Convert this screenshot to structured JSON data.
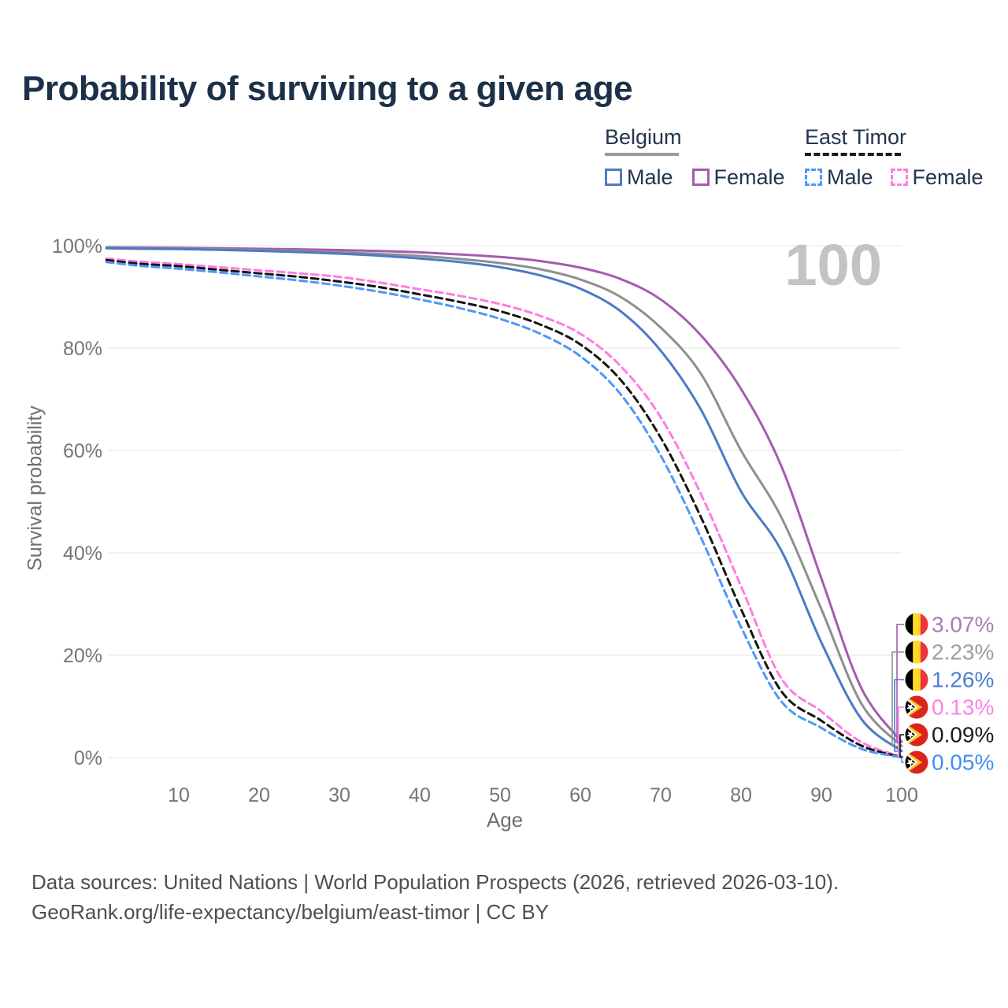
{
  "title": "Probability of surviving to a given age",
  "watermark": "100",
  "legend": {
    "groups": [
      {
        "label": "Belgium",
        "line_style": "solid",
        "underline_color": "#9b9b9b",
        "items": [
          {
            "label": "Male",
            "color": "#4d7cc3",
            "dashed": false
          },
          {
            "label": "Female",
            "color": "#a55cb0",
            "dashed": false
          }
        ]
      },
      {
        "label": "East Timor",
        "line_style": "dashed",
        "underline_color": "#1a1a1a",
        "items": [
          {
            "label": "Male",
            "color": "#4f97fa",
            "dashed": true
          },
          {
            "label": "Female",
            "color": "#ff7ce2",
            "dashed": true
          }
        ]
      }
    ]
  },
  "chart_data": {
    "type": "line",
    "title": "Probability of surviving to a given age",
    "xlabel": "Age",
    "ylabel": "Survival probability",
    "xlim": [
      0,
      103
    ],
    "ylim": [
      0,
      100
    ],
    "grid": "horizontal",
    "x_ticks": [
      10,
      20,
      30,
      40,
      50,
      60,
      70,
      80,
      90,
      100
    ],
    "y_ticks": [
      "0%",
      "20%",
      "40%",
      "60%",
      "80%",
      "100%"
    ],
    "y_gridlines_pct": [
      0,
      20,
      40,
      60,
      80,
      100
    ],
    "legend_position": "top-right",
    "ages": [
      1,
      5,
      10,
      15,
      20,
      25,
      30,
      35,
      40,
      45,
      50,
      55,
      60,
      65,
      70,
      75,
      80,
      85,
      90,
      95,
      100
    ],
    "series": [
      {
        "name": "Belgium — Female",
        "country": "Belgium",
        "sex": "Female",
        "color": "#a55cb0",
        "label_color": "#a87cb5",
        "dashed": false,
        "flag_icon": "belgium-flag-icon",
        "end_label": "3.07%",
        "end_value_pct": 3.07,
        "values": [
          99.7,
          99.65,
          99.6,
          99.5,
          99.4,
          99.3,
          99.15,
          98.95,
          98.7,
          98.3,
          97.8,
          97.0,
          95.7,
          93.5,
          89.5,
          82.5,
          72.0,
          57.0,
          35.0,
          13.5,
          3.07
        ]
      },
      {
        "name": "Belgium — Both sexes",
        "country": "Belgium",
        "sex": "Both",
        "color": "#8f8f8f",
        "label_color": "#9e9e9e",
        "dashed": false,
        "flag_icon": "belgium-flag-icon",
        "end_label": "2.23%",
        "end_value_pct": 2.23,
        "values": [
          99.6,
          99.5,
          99.45,
          99.3,
          99.15,
          98.95,
          98.7,
          98.4,
          98.0,
          97.4,
          96.6,
          95.4,
          93.4,
          90.0,
          84.0,
          75.0,
          60.0,
          47.0,
          29.0,
          10.5,
          2.23
        ]
      },
      {
        "name": "Belgium — Male",
        "country": "Belgium",
        "sex": "Male",
        "color": "#4a7bc4",
        "label_color": "#4d7ed0",
        "dashed": false,
        "flag_icon": "belgium-flag-icon",
        "end_label": "1.26%",
        "end_value_pct": 1.26,
        "values": [
          99.5,
          99.4,
          99.35,
          99.2,
          99.0,
          98.75,
          98.45,
          98.05,
          97.5,
          96.8,
          95.8,
          94.2,
          91.6,
          87.2,
          79.5,
          68.0,
          52.0,
          40.5,
          22.5,
          7.5,
          1.26
        ]
      },
      {
        "name": "East Timor — Female",
        "country": "East Timor",
        "sex": "Female",
        "color": "#ff7ce2",
        "label_color": "#ff80e4",
        "dashed": true,
        "flag_icon": "east-timor-flag-icon",
        "end_label": "0.13%",
        "end_value_pct": 0.13,
        "values": [
          97.5,
          96.9,
          96.4,
          95.8,
          95.2,
          94.6,
          93.9,
          92.8,
          91.5,
          90.2,
          88.6,
          86.3,
          82.8,
          76.5,
          66.5,
          51.5,
          33.5,
          15.5,
          9.0,
          3.0,
          0.13
        ]
      },
      {
        "name": "East Timor — Both sexes",
        "country": "East Timor",
        "sex": "Both",
        "color": "#141414",
        "label_color": "#1a1a1a",
        "dashed": true,
        "flag_icon": "east-timor-flag-icon",
        "end_label": "0.09%",
        "end_value_pct": 0.09,
        "values": [
          97.2,
          96.5,
          96.0,
          95.3,
          94.6,
          93.9,
          93.0,
          91.9,
          90.5,
          89.0,
          87.2,
          84.6,
          80.7,
          73.8,
          62.5,
          47.0,
          29.0,
          13.0,
          7.2,
          2.3,
          0.09
        ]
      },
      {
        "name": "East Timor — Male",
        "country": "East Timor",
        "sex": "Male",
        "color": "#4f97fa",
        "label_color": "#3f8ef7",
        "dashed": true,
        "flag_icon": "east-timor-flag-icon",
        "end_label": "0.05%",
        "end_value_pct": 0.05,
        "values": [
          96.8,
          96.1,
          95.5,
          94.8,
          94.0,
          93.2,
          92.2,
          91.0,
          89.5,
          87.8,
          85.7,
          82.8,
          78.4,
          71.0,
          59.0,
          43.0,
          25.5,
          11.0,
          5.8,
          1.7,
          0.05
        ]
      }
    ]
  },
  "colors": {
    "title": "#1c3148",
    "axis_text": "#757575",
    "gridline": "#eaeaea",
    "watermark": "#c3c3c3",
    "footer_text": "#4f4f4f",
    "belgium_flag": [
      "#000000",
      "#fdda24",
      "#ef3340"
    ],
    "east_timor_flag": [
      "#dc241f",
      "#ffc726",
      "#ffffff",
      "#000000"
    ]
  },
  "footer": {
    "line1": "Data sources: United Nations | World Population Prospects (2026, retrieved 2026-03-10).",
    "line2": "GeoRank.org/life-expectancy/belgium/east-timor | CC BY"
  }
}
